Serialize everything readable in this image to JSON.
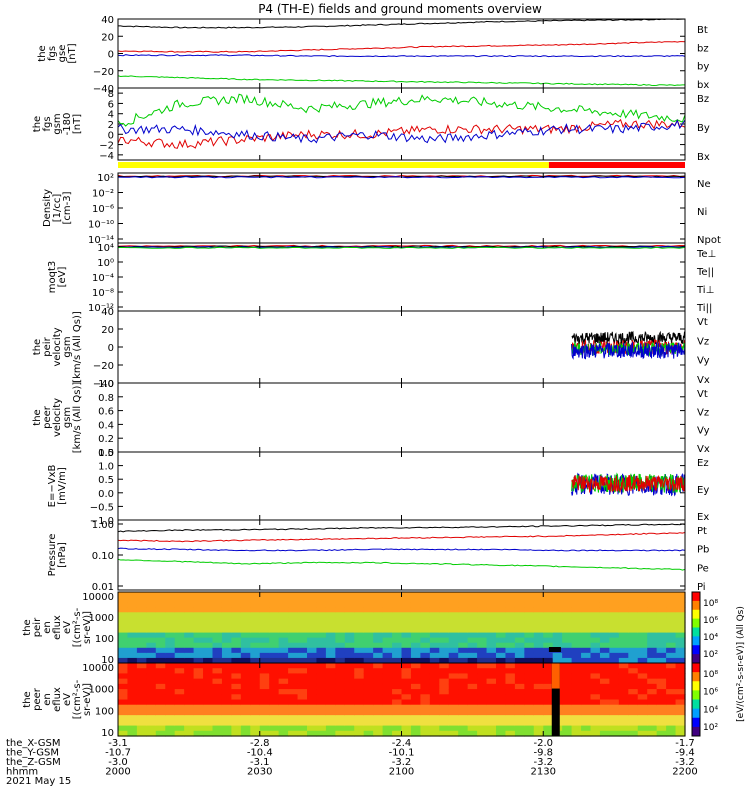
{
  "title": "P4 (TH-E) fields and ground moments overview",
  "colors": {
    "black": "#000000",
    "red": "#e00000",
    "green": "#00cc00",
    "blue": "#0000cc",
    "yellow": "#ffff00",
    "bar_red": "#ff0000"
  },
  "panels": [
    {
      "id": "fgs",
      "ylabel": [
        "the",
        "fgs",
        "gse",
        "[nT]"
      ],
      "ylim": [
        -40,
        40
      ],
      "yticks": [
        "40",
        "20",
        "0",
        "−20",
        "−40"
      ],
      "tickvals": [
        40,
        20,
        0,
        -20,
        -40
      ],
      "legend": [
        {
          "text": "Bt",
          "color": "black"
        },
        {
          "text": "bz",
          "color": "red"
        },
        {
          "text": "by",
          "color": "green"
        },
        {
          "text": "bx",
          "color": "blue"
        }
      ]
    },
    {
      "id": "fgs_gsm",
      "ylabel": [
        "the",
        "fgs",
        "gsm",
        "-180",
        "[nT]"
      ],
      "ylim": [
        -5,
        9
      ],
      "yticks": [
        "8",
        "6",
        "4",
        "2",
        "0",
        "−2",
        "−4"
      ],
      "tickvals": [
        8,
        6,
        4,
        2,
        0,
        -2,
        -4
      ],
      "legend": [
        {
          "text": "Bz",
          "color": "red"
        },
        {
          "text": "By",
          "color": "green"
        },
        {
          "text": "Bx",
          "color": "blue"
        }
      ]
    },
    {
      "id": "density",
      "ylabel": [
        "Density",
        "[1/cc]",
        "[cm-3]"
      ],
      "yticks": [
        "10²",
        "10⁻²",
        "10⁻⁶",
        "10⁻¹⁰",
        "10⁻¹⁴"
      ],
      "legend": [
        {
          "text": "Ne",
          "color": "red"
        },
        {
          "text": "Ni",
          "color": "black"
        },
        {
          "text": "Npot",
          "color": "blue"
        }
      ]
    },
    {
      "id": "temp",
      "ylabel": [
        "moqt3",
        "[eV]"
      ],
      "yticks": [
        "10⁴",
        "10⁰",
        "10⁻⁴",
        "10⁻⁸",
        "10⁻¹²"
      ],
      "legend": [
        {
          "text": "Te⊥",
          "color": "red"
        },
        {
          "text": "Te||",
          "color": "black"
        },
        {
          "text": "Ti⊥",
          "color": "blue"
        },
        {
          "text": "Ti||",
          "color": "green"
        }
      ]
    },
    {
      "id": "peir_vel",
      "ylabel": [
        "the",
        "peir",
        "velocity",
        "gsm",
        "[km/s (All Qs)]"
      ],
      "ylim": [
        -40,
        40
      ],
      "yticks": [
        "40",
        "20",
        "0",
        "−20",
        "−40"
      ],
      "tickvals": [
        40,
        20,
        0,
        -20,
        -40
      ],
      "legend": [
        {
          "text": "Vt",
          "color": "black"
        },
        {
          "text": "Vz",
          "color": "red"
        },
        {
          "text": "Vy",
          "color": "green"
        },
        {
          "text": "Vx",
          "color": "blue"
        }
      ]
    },
    {
      "id": "peer_vel",
      "ylabel": [
        "the",
        "peer",
        "velocity",
        "gsm",
        "[km/s (All Qs)]"
      ],
      "ylim": [
        0,
        1
      ],
      "yticks": [
        "1.0",
        "0.8",
        "0.6",
        "0.4",
        "0.2",
        "0.0"
      ],
      "tickvals": [
        1,
        0.8,
        0.6,
        0.4,
        0.2,
        0
      ],
      "legend": [
        {
          "text": "Vt",
          "color": "black"
        },
        {
          "text": "Vz",
          "color": "red"
        },
        {
          "text": "Vy",
          "color": "green"
        },
        {
          "text": "Vx",
          "color": "blue"
        }
      ]
    },
    {
      "id": "efield",
      "ylabel": [
        "E=−VxB",
        "[mV/m]"
      ],
      "ylim": [
        -1,
        1.5
      ],
      "yticks": [
        "1.5",
        "1.0",
        "0.5",
        "0.0",
        "−0.5",
        "−1.0"
      ],
      "tickvals": [
        1.5,
        1.0,
        0.5,
        0.0,
        -0.5,
        -1.0
      ],
      "legend": [
        {
          "text": "Ez",
          "color": "red"
        },
        {
          "text": "Ey",
          "color": "green"
        },
        {
          "text": "Ex",
          "color": "blue"
        }
      ]
    },
    {
      "id": "pressure",
      "ylabel": [
        "Pressure",
        "[nPa]"
      ],
      "yticks": [
        "1.00",
        "0.10",
        "0.01"
      ],
      "legend": [
        {
          "text": "Pt",
          "color": "black"
        },
        {
          "text": "Pb",
          "color": "red"
        },
        {
          "text": "Pe",
          "color": "green"
        },
        {
          "text": "Pi",
          "color": "blue"
        }
      ]
    },
    {
      "id": "peir_spec",
      "ylabel": [
        "the",
        "peir",
        "en",
        "eflux",
        "eV",
        "[(cm²-s-",
        "sr-eV)]"
      ],
      "yticks": [
        "10000",
        "1000",
        "100",
        "10"
      ]
    },
    {
      "id": "peer_spec",
      "ylabel": [
        "the",
        "peer",
        "en",
        "eflux",
        "eV",
        "[(cm²-s-",
        "sr-eV)]"
      ],
      "yticks": [
        "10000",
        "1000",
        "100",
        "10"
      ]
    }
  ],
  "colorbars": {
    "label": "[eV/(cm²-s-sr-eV)] (All Qs)",
    "top": {
      "ticks": [
        "10⁸",
        "10⁶",
        "10⁴",
        "10²"
      ]
    },
    "bottom": {
      "ticks": [
        "10⁸",
        "10⁶",
        "10⁴",
        "10²"
      ]
    }
  },
  "xaxis": {
    "rows": [
      {
        "label": "the_X-GSM",
        "values": [
          "-3.1",
          "-2.8",
          "-2.4",
          "-2.0",
          "-1.7"
        ]
      },
      {
        "label": "the_Y-GSM",
        "values": [
          "-10.7",
          "-10.4",
          "-10.1",
          "-9.8",
          "-9.4"
        ]
      },
      {
        "label": "the_Z-GSM",
        "values": [
          "-3.0",
          "-3.1",
          "-3.2",
          "-3.2",
          "-3.2"
        ]
      },
      {
        "label": "hhmm",
        "values": [
          "2000",
          "2030",
          "2100",
          "2130",
          "2200"
        ]
      }
    ],
    "date": "2021 May 15"
  },
  "chart_data": {
    "type": "line",
    "x_range": [
      "20:00",
      "22:00"
    ],
    "series": [
      {
        "name": "Bt",
        "panel": "fgs",
        "approx_values": [
          32,
          30,
          30,
          31,
          33,
          35,
          37,
          38,
          39,
          40
        ]
      },
      {
        "name": "bz",
        "panel": "fgs",
        "approx_values": [
          3,
          2,
          2,
          4,
          6,
          8,
          9,
          10,
          12,
          14
        ]
      },
      {
        "name": "by",
        "panel": "fgs",
        "approx_values": [
          -2,
          -2,
          -2,
          -3,
          -3,
          -3,
          -3,
          -3,
          -3,
          -3
        ]
      },
      {
        "name": "bx",
        "panel": "fgs",
        "approx_values": [
          -26,
          -28,
          -30,
          -31,
          -32,
          -33,
          -34,
          -35,
          -36,
          -37
        ]
      },
      {
        "name": "Bz",
        "panel": "fgs_gsm",
        "approx_values": [
          -1,
          -2,
          -1,
          0,
          0,
          1,
          1,
          1,
          2,
          2
        ]
      },
      {
        "name": "By",
        "panel": "fgs_gsm",
        "approx_values": [
          2,
          6,
          7,
          5,
          6,
          7,
          6,
          5,
          4,
          3
        ]
      },
      {
        "name": "Bx",
        "panel": "fgs_gsm",
        "approx_values": [
          1,
          1,
          0,
          -1,
          0,
          -1,
          0,
          1,
          1,
          2
        ]
      },
      {
        "name": "Pt",
        "panel": "pressure",
        "approx_values": [
          0.55,
          0.6,
          0.62,
          0.65,
          0.7,
          0.72,
          0.75,
          0.8,
          0.85,
          0.9
        ]
      },
      {
        "name": "Pb",
        "panel": "pressure",
        "approx_values": [
          0.3,
          0.28,
          0.3,
          0.32,
          0.34,
          0.36,
          0.38,
          0.4,
          0.45,
          0.5
        ]
      },
      {
        "name": "Pe",
        "panel": "pressure",
        "approx_values": [
          0.08,
          0.07,
          0.06,
          0.065,
          0.065,
          0.06,
          0.055,
          0.05,
          0.045,
          0.04
        ]
      },
      {
        "name": "Pi",
        "panel": "pressure",
        "approx_values": [
          0.17,
          0.16,
          0.15,
          0.15,
          0.16,
          0.16,
          0.16,
          0.15,
          0.15,
          0.15
        ]
      }
    ]
  }
}
